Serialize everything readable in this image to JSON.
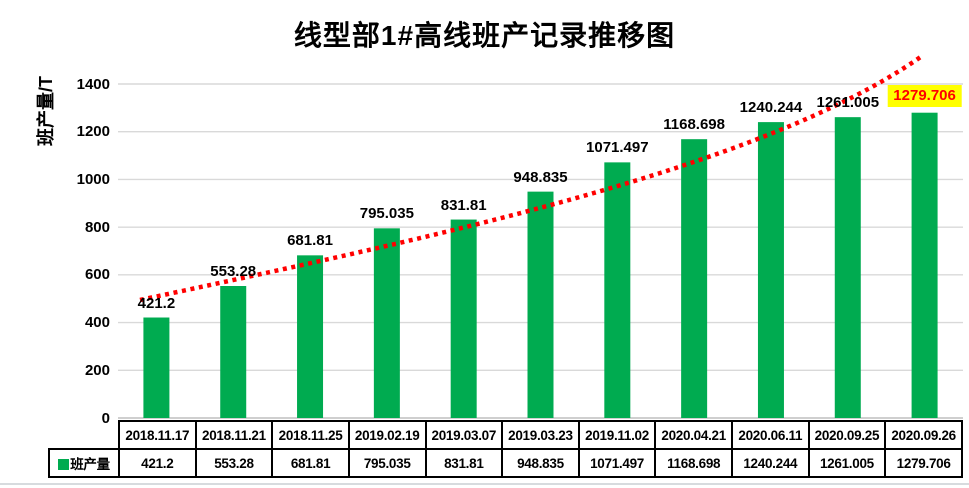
{
  "title": "线型部1#高线班产记录推移图",
  "y_axis": {
    "label": "班产量/T",
    "ticks": [
      0,
      200,
      400,
      600,
      800,
      1000,
      1200,
      1400
    ]
  },
  "legend": {
    "label": "班产量"
  },
  "colors": {
    "bar": "#00AB50",
    "trend": "#FF0000",
    "gridline": "#D9D9D9",
    "axis_line": "#BFBFBF",
    "table_border": "#000000",
    "highlight_bg": "#FFFF00",
    "highlight_text": "#FF0000",
    "label_text": "#000000"
  },
  "chart_data": {
    "type": "bar",
    "title": "线型部1#高线班产记录推移图",
    "xlabel": "",
    "ylabel": "班产量/T",
    "categories": [
      "2018.11.17",
      "2018.11.21",
      "2018.11.25",
      "2019.02.19",
      "2019.03.07",
      "2019.03.23",
      "2019.11.02",
      "2020.04.21",
      "2020.06.11",
      "2020.09.25",
      "2020.09.26"
    ],
    "series": [
      {
        "name": "班产量",
        "values": [
          421.2,
          553.28,
          681.81,
          795.035,
          831.81,
          948.835,
          1071.497,
          1168.698,
          1240.244,
          1261.005,
          1279.706
        ]
      }
    ],
    "value_labels": [
      "421.2",
      "553.28",
      "681.81",
      "795.035",
      "831.81",
      "948.835",
      "1071.497",
      "1168.698",
      "1240.244",
      "1261.005",
      "1279.706"
    ],
    "yticks": [
      0,
      200,
      400,
      600,
      800,
      1000,
      1200,
      1400
    ],
    "ylim": [
      0,
      1500
    ],
    "grid": true,
    "legend_position": "table-row-left",
    "trendline": {
      "style": "dotted",
      "color": "#FF0000",
      "shape": "increasing-curve"
    },
    "highlight": {
      "index": 10,
      "background": "#FFFF00",
      "text_color": "#FF0000"
    }
  },
  "table": {
    "row_label": "班产量",
    "header_row": [
      "2018.11.17",
      "2018.11.21",
      "2018.11.25",
      "2019.02.19",
      "2019.03.07",
      "2019.03.23",
      "2019.11.02",
      "2020.04.21",
      "2020.06.11",
      "2020.09.25",
      "2020.09.26"
    ],
    "value_row": [
      "421.2",
      "553.28",
      "681.81",
      "795.035",
      "831.81",
      "948.835",
      "1071.497",
      "1168.698",
      "1240.244",
      "1261.005",
      "1279.706"
    ]
  }
}
